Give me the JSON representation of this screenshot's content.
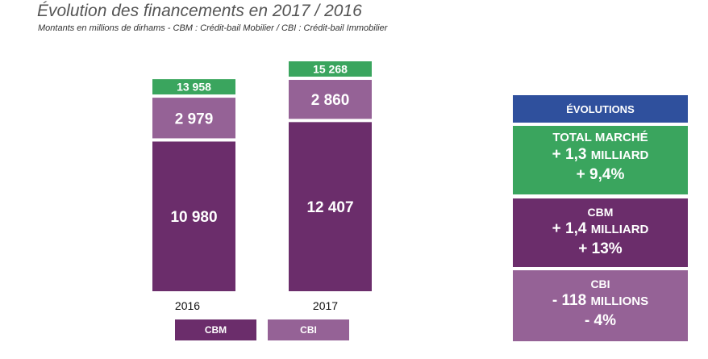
{
  "title": "Évolution des financements en 2017 / 2016",
  "subtitle": "Montants en millions de dirhams  - CBM : Crédit-bail Mobilier / CBI : Crédit-bail Immobilier",
  "colors": {
    "cbm": "#6b2d6b",
    "cbi": "#956296",
    "total": "#3aa55e",
    "header": "#2f509d"
  },
  "chart_data": {
    "type": "bar",
    "stacked": true,
    "categories": [
      "2016",
      "2017"
    ],
    "series": [
      {
        "name": "CBM",
        "values": [
          10980,
          12407
        ]
      },
      {
        "name": "CBI",
        "values": [
          2979,
          2860
        ]
      }
    ],
    "totals": [
      "13 958",
      "15 268"
    ],
    "value_labels": {
      "CBM": [
        "10 980",
        "12 407"
      ],
      "CBI": [
        "2 979",
        "2 860"
      ]
    },
    "ylim": [
      0,
      15268
    ]
  },
  "legend": {
    "cbm_label": "CBM",
    "cbi_label": "CBI"
  },
  "evolutions": {
    "header": "ÉVOLUTIONS",
    "total": {
      "title": "TOTAL MARCHÉ",
      "line1": "+ 1,3",
      "line1_unit": "MILLIARD",
      "line2": "+ 9,4%"
    },
    "cbm": {
      "title": "CBM",
      "line1": "+ 1,4",
      "line1_unit": "MILLIARD",
      "line2": "+ 13%"
    },
    "cbi": {
      "title": "CBI",
      "line1": "- 118",
      "line1_unit": "MILLIONS",
      "line2": "- 4%"
    }
  }
}
